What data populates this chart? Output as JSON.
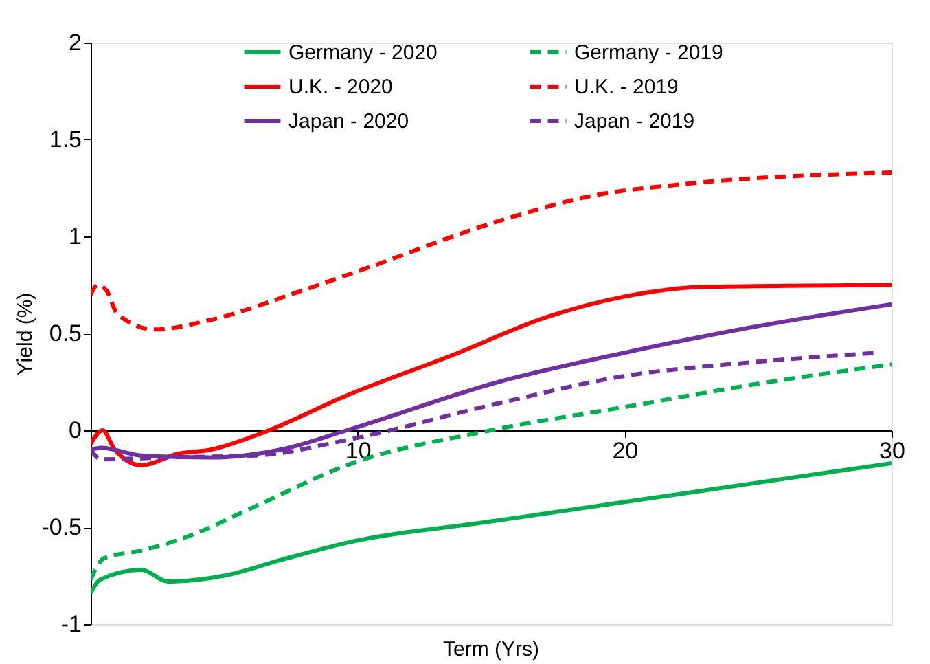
{
  "chart_data": {
    "type": "line",
    "xlabel": "Term (Yrs)",
    "ylabel": "Yield (%)",
    "xlim": [
      0,
      30
    ],
    "xticks": [
      {
        "value": 0,
        "label": null
      },
      10,
      20,
      30
    ],
    "ylim": [
      -1,
      2
    ],
    "yticks": [
      -1,
      -0.5,
      0,
      0.5,
      1,
      1.5,
      2
    ],
    "grid": false,
    "legend": "top",
    "marker": "none",
    "series": [
      {
        "name": "Germany - 2020",
        "color": "#00b050",
        "line_style": "solid",
        "x": [
          0,
          0.36,
          1.9,
          2.9,
          5,
          7.1,
          9.6,
          15,
          20,
          25,
          30
        ],
        "values": [
          -0.84,
          -0.77,
          -0.72,
          -0.78,
          -0.75,
          -0.67,
          -0.58,
          -0.47,
          -0.37,
          -0.27,
          -0.17
        ]
      },
      {
        "name": "Germany - 2019",
        "color": "#00b050",
        "line_style": "dashed",
        "x": [
          0,
          0.5,
          1.9,
          3.6,
          6.2,
          9.6,
          15,
          20,
          25,
          30
        ],
        "values": [
          -0.77,
          -0.66,
          -0.62,
          -0.55,
          -0.39,
          -0.18,
          0.0,
          0.12,
          0.24,
          0.34
        ]
      },
      {
        "name": "U.K. - 2020",
        "color": "#ff0000",
        "line_style": "solid",
        "x": [
          0,
          0.45,
          0.9,
          1.9,
          3.3,
          4.5,
          6.5,
          9.6,
          13.6,
          17,
          20,
          23,
          30
        ],
        "values": [
          -0.07,
          0.0,
          -0.1,
          -0.18,
          -0.12,
          -0.1,
          -0.01,
          0.18,
          0.39,
          0.58,
          0.69,
          0.74,
          0.75
        ]
      },
      {
        "name": "U.K. - 2019",
        "color": "#ff0000",
        "line_style": "dashed",
        "x": [
          0,
          0.26,
          0.6,
          1,
          2.4,
          4.5,
          7.9,
          10.2,
          15.3,
          18.8,
          22.2,
          30
        ],
        "values": [
          0.7,
          0.75,
          0.72,
          0.6,
          0.52,
          0.57,
          0.72,
          0.83,
          1.08,
          1.21,
          1.27,
          1.33
        ]
      },
      {
        "name": "Japan - 2020",
        "color": "#7030a0",
        "line_style": "solid",
        "x": [
          0,
          0.4,
          1.9,
          4.5,
          7.1,
          9.6,
          15.3,
          20,
          24.7,
          30
        ],
        "values": [
          -0.1,
          -0.09,
          -0.13,
          -0.14,
          -0.1,
          0.0,
          0.25,
          0.4,
          0.53,
          0.65
        ]
      },
      {
        "name": "Japan - 2019",
        "color": "#7030a0",
        "line_style": "dashed",
        "x": [
          0,
          0.4,
          2.8,
          6.2,
          9.6,
          15.3,
          20,
          24.7,
          29.5
        ],
        "values": [
          -0.1,
          -0.15,
          -0.14,
          -0.13,
          -0.05,
          0.14,
          0.28,
          0.35,
          0.4
        ]
      }
    ]
  }
}
